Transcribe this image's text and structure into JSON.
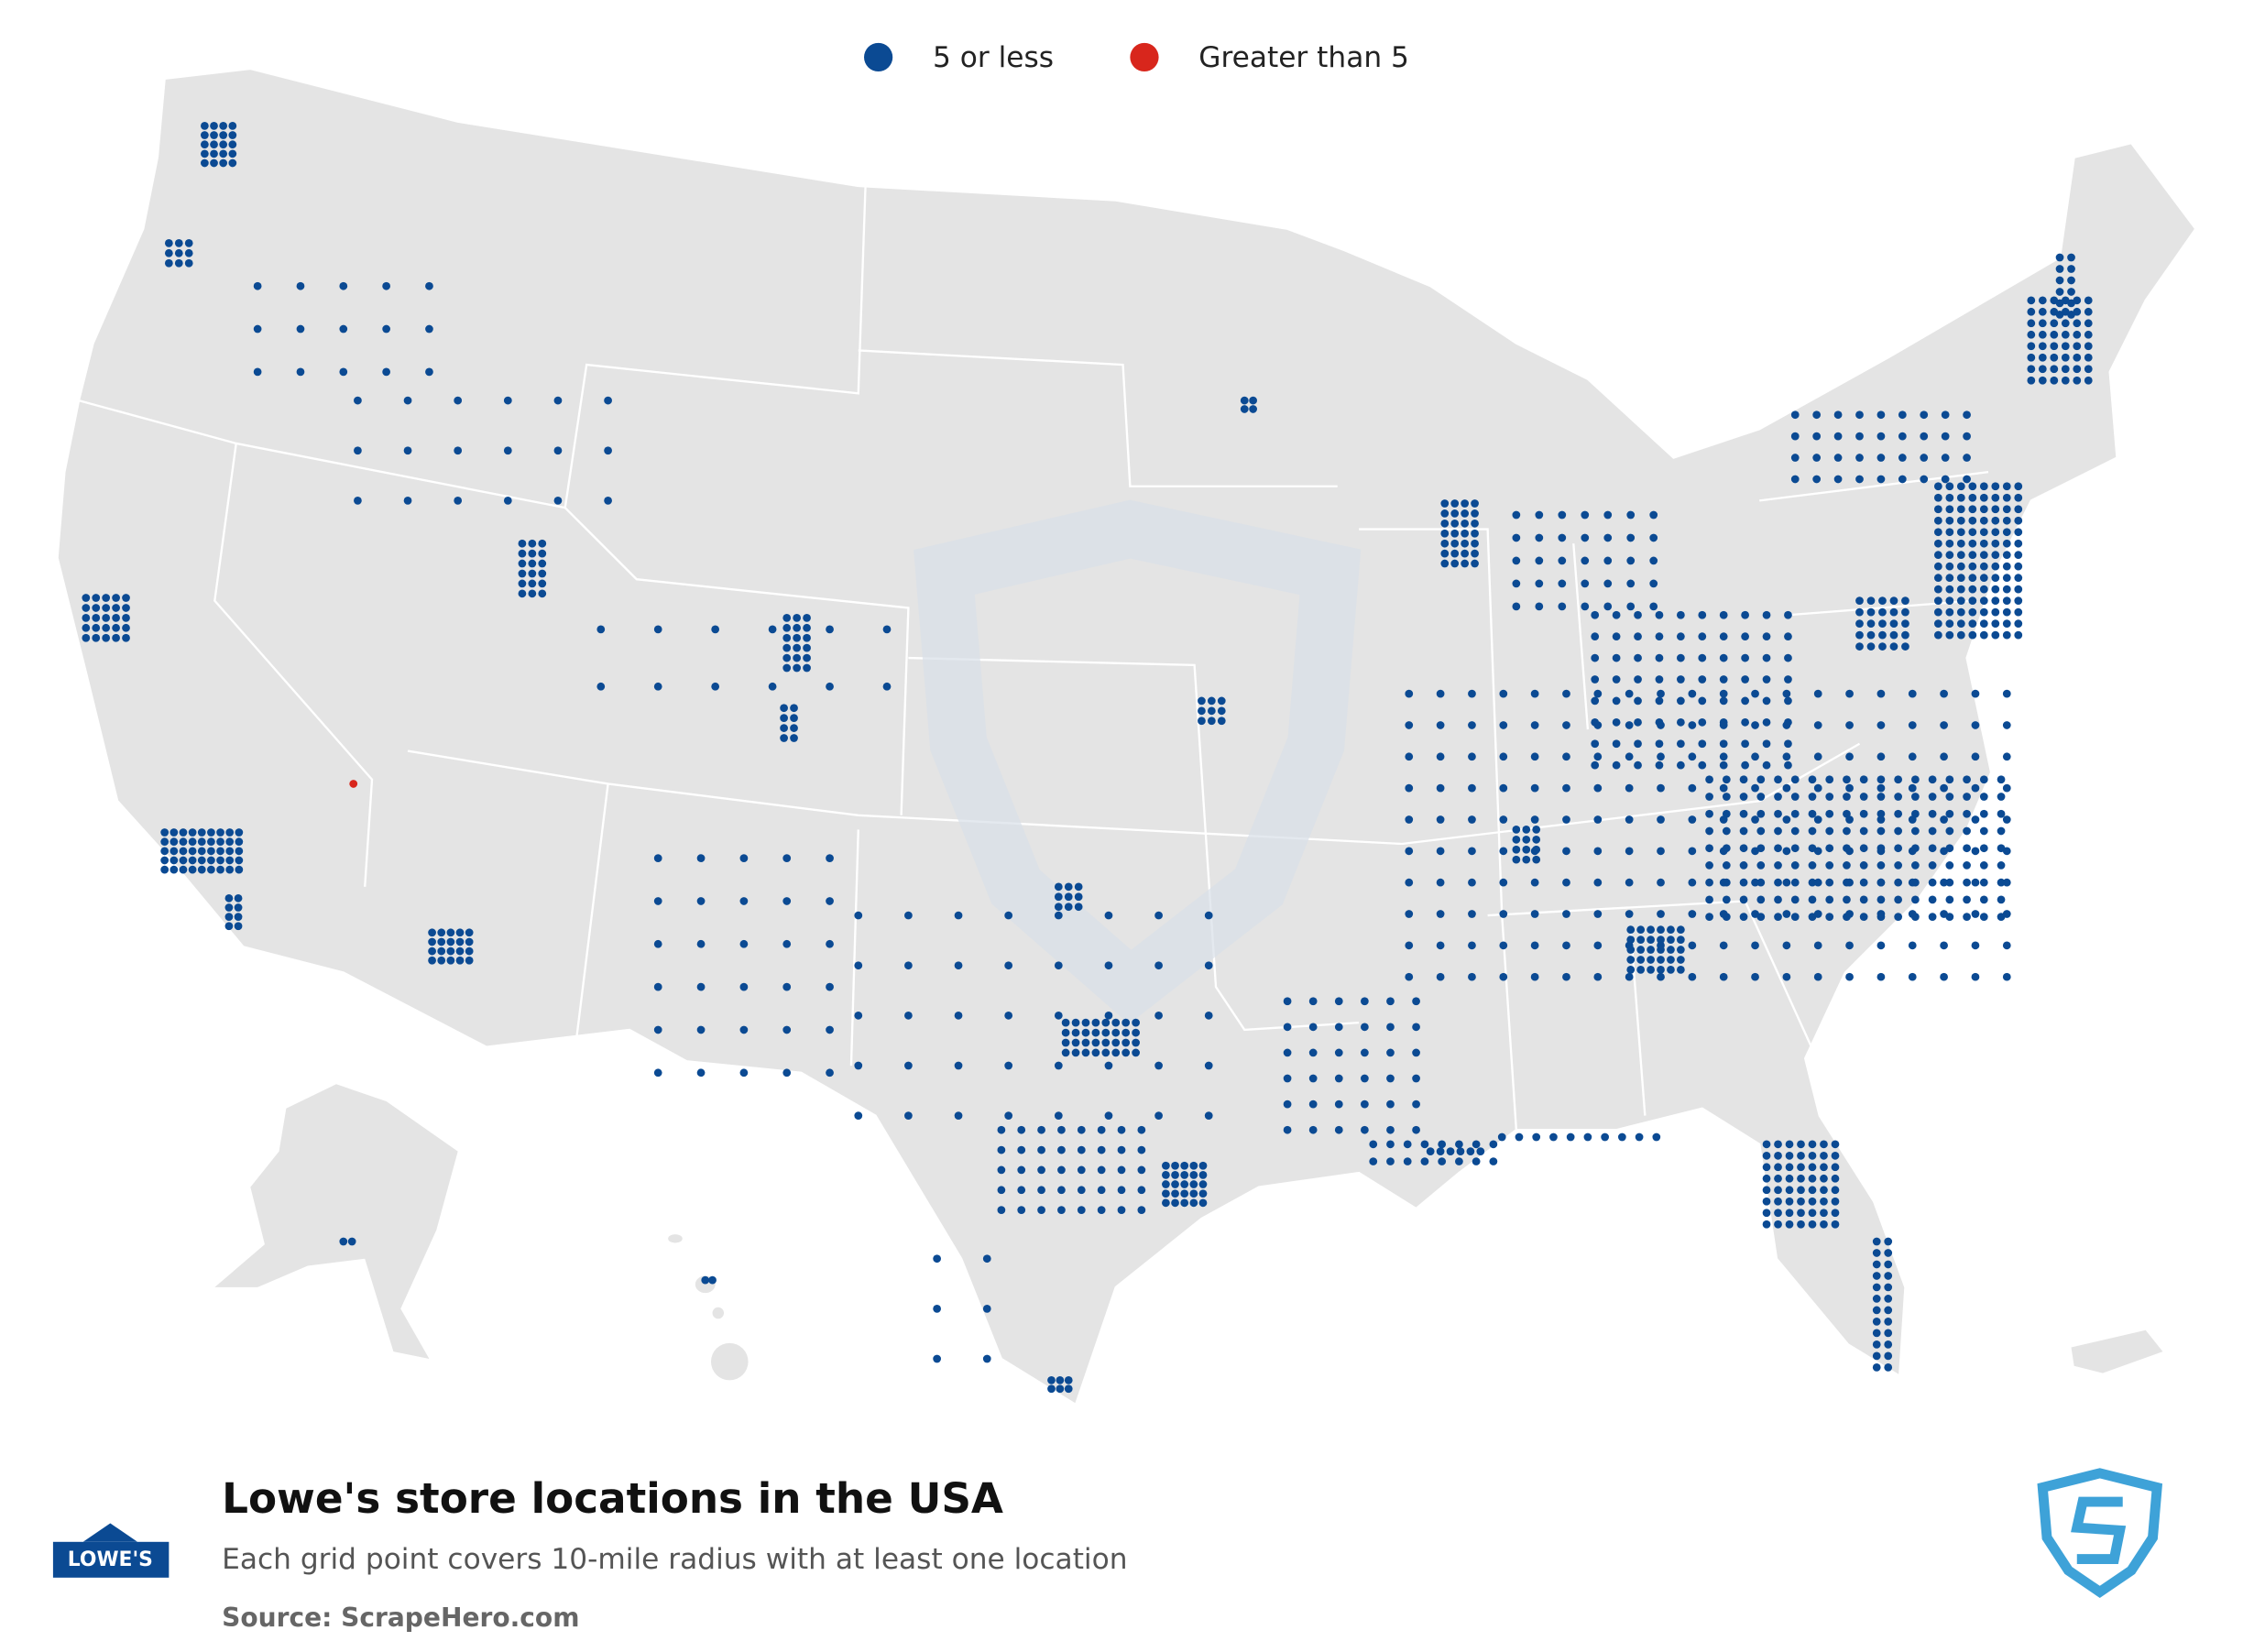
{
  "legend": {
    "items": [
      {
        "label": "5 or less",
        "color": "#0b4a93"
      },
      {
        "label": "Greater than 5",
        "color": "#d8261c"
      }
    ]
  },
  "footer": {
    "logo": "LOWE'S",
    "title": "Lowe's store locations in the USA",
    "subtitle": "Each grid point covers 10-mile radius with at least one location",
    "source": "Source: ScrapeHero.com"
  }
}
